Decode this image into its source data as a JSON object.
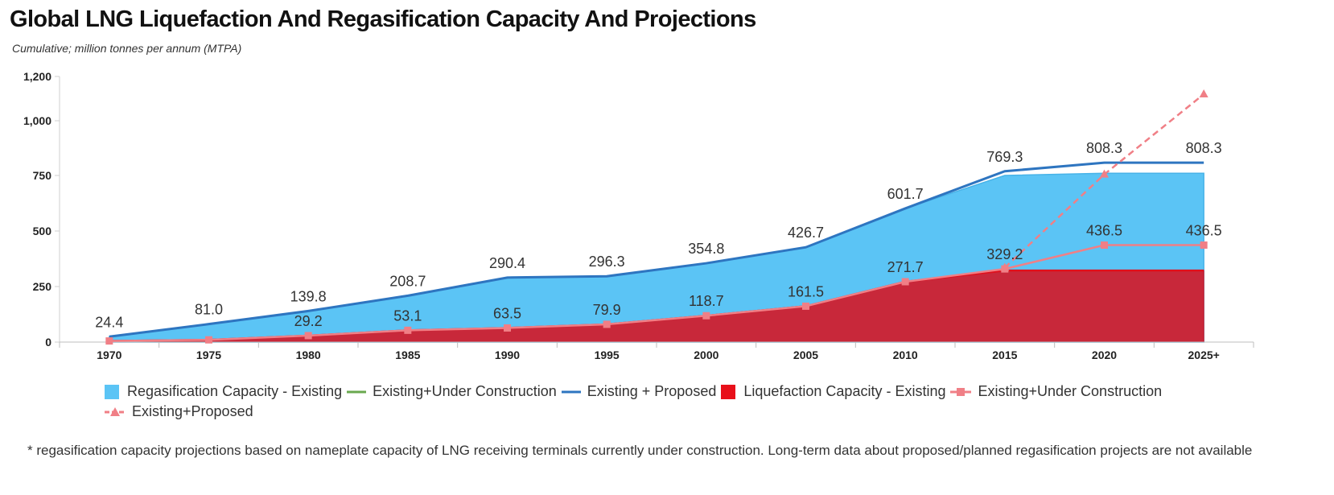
{
  "title": "Global LNG Liquefaction And Regasification Capacity And Projections",
  "subtitle": "Cumulative; million tonnes per annum (MTPA)",
  "footnote": "* regasification capacity projections based on nameplate capacity of LNG receiving terminals currently under construction. Long-term data about proposed/planned regasification projects are not available",
  "chart_data": {
    "type": "area",
    "categories": [
      "1970",
      "1975",
      "1980",
      "1985",
      "1990",
      "1995",
      "2000",
      "2005",
      "2010",
      "2015",
      "2020",
      "2025+"
    ],
    "yticks": [
      0,
      250,
      500,
      750,
      1000,
      1200
    ],
    "ytick_labels": [
      "0",
      "250",
      "500",
      "750",
      "1,000",
      "1,200"
    ],
    "ylim": [
      0,
      1200
    ],
    "xlabel": "",
    "ylabel": "",
    "legend_position": "bottom",
    "grid": false,
    "colors": {
      "regas_area": "#5bc4f5",
      "regas_uc_line": "#6aa84f",
      "regas_proposed_line": "#2e75c0",
      "liq_area": "#c8283a",
      "liq_uc_line": "#f07f86",
      "liq_proposed_line": "#f07f86"
    },
    "series": [
      {
        "key": "regas_existing",
        "name": "Regasification Capacity - Existing",
        "kind": "area",
        "values": [
          24.4,
          81.0,
          139.8,
          208.7,
          290.4,
          296.3,
          354.8,
          426.7,
          601.7,
          750,
          760,
          760
        ]
      },
      {
        "key": "regas_uc",
        "name": "Existing+Under Construction",
        "kind": "line",
        "values": [
          null,
          null,
          null,
          null,
          null,
          null,
          null,
          null,
          null,
          null,
          null,
          null
        ]
      },
      {
        "key": "regas_proposed",
        "name": "Existing + Proposed",
        "kind": "line",
        "values": [
          24.4,
          81.0,
          139.8,
          208.7,
          290.4,
          296.3,
          354.8,
          426.7,
          601.7,
          769.3,
          808.3,
          808.3
        ],
        "labels": [
          "24.4",
          "81.0",
          "139.8",
          "208.7",
          "290.4",
          "296.3",
          "354.8",
          "426.7",
          "601.7",
          "769.3",
          "808.3",
          "808.3"
        ]
      },
      {
        "key": "liq_existing",
        "name": "Liquefaction Capacity - Existing",
        "kind": "area",
        "values": [
          5,
          10,
          29.2,
          53.1,
          63.5,
          79.9,
          118.7,
          161.5,
          271.7,
          322,
          322,
          322
        ]
      },
      {
        "key": "liq_uc",
        "name": "Existing+Under Construction",
        "kind": "line-marker",
        "values": [
          5,
          10,
          29.2,
          53.1,
          63.5,
          79.9,
          118.7,
          161.5,
          271.7,
          329.2,
          436.5,
          436.5
        ],
        "labels": [
          "",
          "",
          "29.2",
          "53.1",
          "63.5",
          "79.9",
          "118.7",
          "161.5",
          "271.7",
          "329.2",
          "436.5",
          "436.5"
        ]
      },
      {
        "key": "liq_proposed",
        "name": "Existing+Proposed",
        "kind": "dashed-triangle",
        "values": [
          null,
          null,
          null,
          null,
          null,
          null,
          null,
          null,
          null,
          335,
          755,
          1120
        ]
      }
    ]
  }
}
